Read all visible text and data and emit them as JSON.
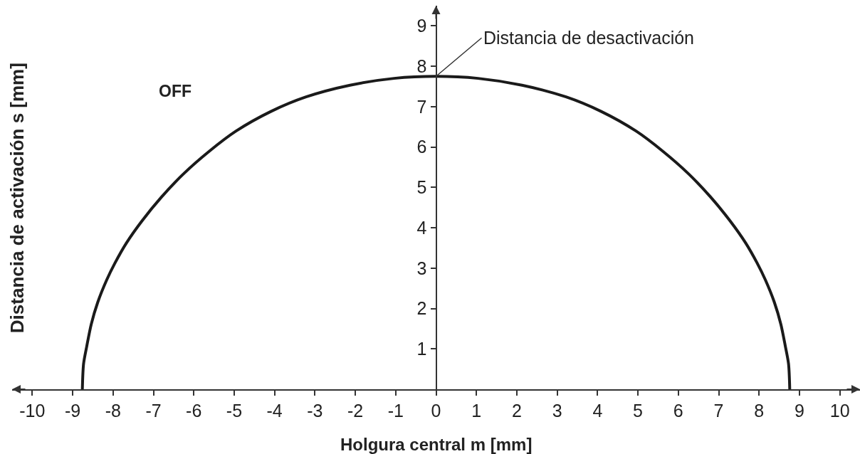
{
  "chart_data": {
    "type": "line",
    "xlabel": "Holgura central m [mm]",
    "ylabel": "Distancia de activación s [mm]",
    "x": [
      -8.76,
      -8.73,
      -8.65,
      -8.54,
      -8.38,
      -8.16,
      -7.95,
      -7.67,
      -7.29,
      -6.8,
      -6.26,
      -5.61,
      -4.96,
      -4.09,
      -3.22,
      -2.13,
      -1.04,
      0,
      1.04,
      2.13,
      3.22,
      4.09,
      4.96,
      5.61,
      6.26,
      6.8,
      7.29,
      7.67,
      7.95,
      8.16,
      8.38,
      8.54,
      8.65,
      8.73,
      8.76
    ],
    "series": [
      {
        "color": "#1a1a1a",
        "values": [
          0,
          0.63,
          1.07,
          1.61,
          2.15,
          2.7,
          3.13,
          3.62,
          4.16,
          4.76,
          5.33,
          5.9,
          6.39,
          6.88,
          7.24,
          7.53,
          7.7,
          7.75,
          7.7,
          7.53,
          7.24,
          6.88,
          6.39,
          5.9,
          5.33,
          4.76,
          4.16,
          3.62,
          3.13,
          2.7,
          2.15,
          1.61,
          1.07,
          0.63,
          0
        ]
      }
    ],
    "xlim": [
      -10.5,
      10.5
    ],
    "ylim": [
      0,
      9.5
    ],
    "xticks": [
      -10,
      -9,
      -8,
      -7,
      -6,
      -5,
      -4,
      -3,
      -2,
      -1,
      0,
      1,
      2,
      3,
      4,
      5,
      6,
      7,
      8,
      9,
      10
    ],
    "yticks": [
      1,
      2,
      3,
      4,
      5,
      6,
      7,
      8,
      9
    ],
    "annotations": [
      {
        "text": "Distancia de desactivación",
        "x": 0,
        "y": 7.75
      },
      "OFF"
    ],
    "line_style": "solid"
  }
}
